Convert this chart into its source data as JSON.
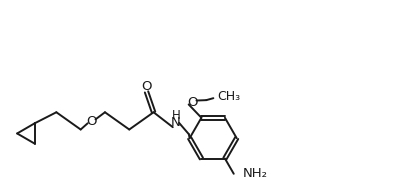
{
  "background_color": "#ffffff",
  "line_color": "#1a1a1a",
  "line_width": 1.4,
  "font_size": 9.5,
  "fig_width": 4.13,
  "fig_height": 1.82,
  "dpi": 100,
  "xlim": [
    0,
    10.5
  ],
  "ylim": [
    0,
    4.5
  ]
}
